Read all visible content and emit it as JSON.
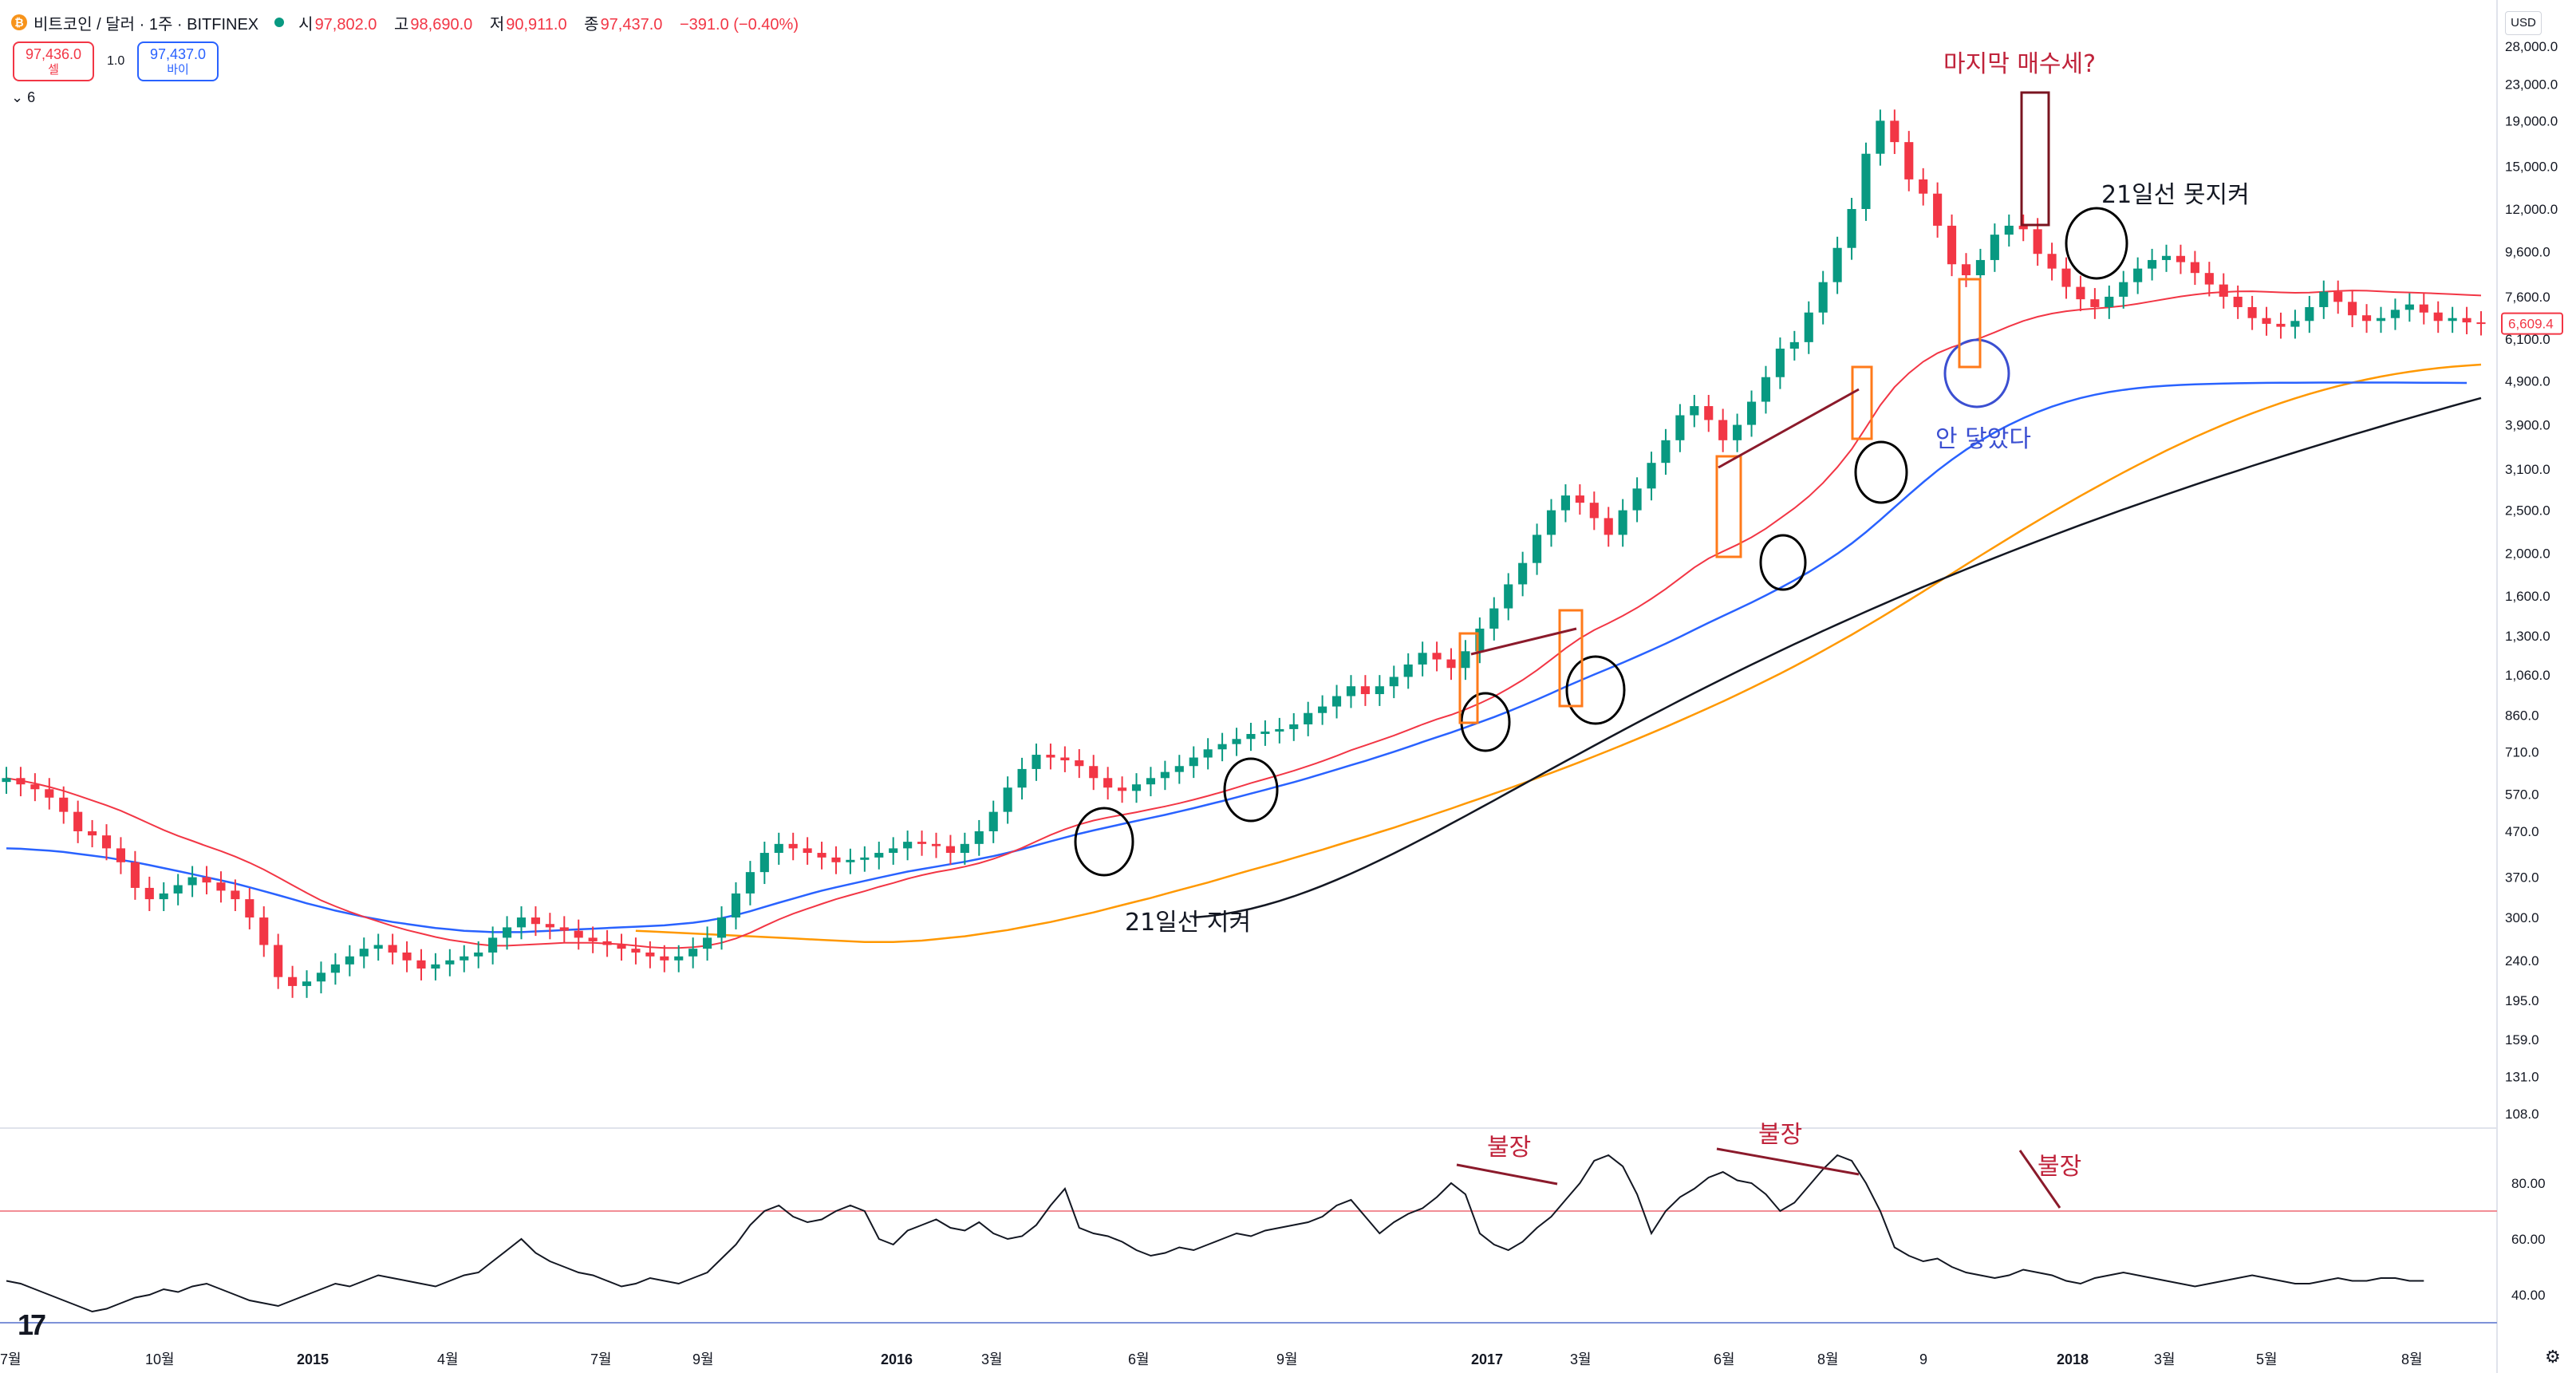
{
  "header": {
    "symbol_icon": "bitcoin-icon",
    "title": "비트코인 / 달러 · 1주 · BITFINEX",
    "ohlc": [
      {
        "k": "시",
        "v": "97,802.0"
      },
      {
        "k": "고",
        "v": "98,690.0"
      },
      {
        "k": "저",
        "v": "90,911.0"
      },
      {
        "k": "종",
        "v": "97,437.0"
      },
      {
        "k": "",
        "v": "−391.0 (−0.40%)"
      }
    ],
    "sell_price": "97,436.0",
    "sell_label": "셀",
    "spread": "1.0",
    "buy_price": "97,437.0",
    "buy_label": "바이",
    "indicator_toggle": "6",
    "currency": "USD"
  },
  "chart_data": {
    "type": "line",
    "y_axis_labels": [
      "28,000.0",
      "23,000.0",
      "19,000.0",
      "15,000.0",
      "12,000.0",
      "9,600.0",
      "7,600.0",
      "6,100.0",
      "4,900.0",
      "3,900.0",
      "3,100.0",
      "2,500.0",
      "2,000.0",
      "1,600.0",
      "1,300.0",
      "1,060.0",
      "860.0",
      "710.0",
      "570.0",
      "470.0",
      "370.0",
      "300.0",
      "240.0",
      "195.0",
      "159.0",
      "131.0",
      "108.0"
    ],
    "y_scale": "log",
    "last_price_label": "6,609.4",
    "x_axis_labels": [
      "7월",
      "10월",
      "2015",
      "4월",
      "7월",
      "9월",
      "2016",
      "3월",
      "6월",
      "9월",
      "2017",
      "3월",
      "6월",
      "8월",
      "9",
      "2018",
      "3월",
      "5월",
      "8월"
    ],
    "price": [
      620,
      600,
      585,
      560,
      520,
      470,
      460,
      430,
      400,
      350,
      330,
      340,
      355,
      370,
      360,
      345,
      330,
      300,
      260,
      220,
      210,
      215,
      225,
      235,
      245,
      255,
      260,
      250,
      240,
      230,
      235,
      240,
      245,
      250,
      270,
      285,
      300,
      290,
      285,
      280,
      270,
      265,
      260,
      255,
      250,
      245,
      240,
      245,
      255,
      270,
      300,
      340,
      380,
      420,
      440,
      430,
      420,
      410,
      400,
      405,
      410,
      420,
      430,
      445,
      440,
      435,
      420,
      440,
      470,
      520,
      590,
      650,
      700,
      690,
      680,
      660,
      620,
      590,
      580,
      600,
      620,
      640,
      660,
      690,
      720,
      740,
      760,
      780,
      790,
      800,
      820,
      870,
      900,
      950,
      1000,
      960,
      1000,
      1050,
      1120,
      1190,
      1150,
      1100,
      1200,
      1350,
      1500,
      1700,
      1900,
      2200,
      2500,
      2700,
      2600,
      2400,
      2200,
      2500,
      2800,
      3200,
      3600,
      4100,
      4300,
      4000,
      3600,
      3900,
      4400,
      5000,
      5800,
      6000,
      7000,
      8200,
      9800,
      12000,
      16000,
      19000,
      17000,
      14000,
      13000,
      11000,
      9000,
      8500,
      9200,
      10500,
      11000,
      10800,
      9500,
      8800,
      8000,
      7500,
      7200,
      7600,
      8200,
      8800,
      9200,
      9400,
      9100,
      8600,
      8100,
      7600,
      7200,
      6800,
      6600,
      6500,
      6700,
      7200,
      7800,
      7400,
      6900,
      6700,
      6800,
      7100,
      7300,
      7000,
      6700,
      6800,
      6650,
      6609
    ],
    "ma21": [
      620,
      612,
      603,
      592,
      580,
      566,
      552,
      538,
      523,
      506,
      489,
      473,
      459,
      447,
      435,
      424,
      412,
      399,
      385,
      370,
      355,
      341,
      328,
      318,
      309,
      301,
      294,
      287,
      281,
      276,
      271,
      267,
      264,
      261,
      259,
      259,
      260,
      261,
      262,
      263,
      263,
      263,
      262,
      261,
      259,
      257,
      256,
      256,
      257,
      259,
      263,
      269,
      277,
      287,
      297,
      306,
      314,
      322,
      330,
      337,
      344,
      352,
      359,
      367,
      374,
      380,
      385,
      391,
      398,
      407,
      418,
      431,
      446,
      461,
      475,
      487,
      497,
      505,
      512,
      519,
      527,
      535,
      544,
      554,
      565,
      577,
      590,
      604,
      617,
      630,
      644,
      660,
      677,
      696,
      717,
      735,
      754,
      774,
      796,
      820,
      842,
      862,
      886,
      915,
      948,
      988,
      1033,
      1087,
      1150,
      1218,
      1283,
      1340,
      1389,
      1443,
      1505,
      1577,
      1660,
      1755,
      1856,
      1945,
      2018,
      2089,
      2172,
      2272,
      2396,
      2527,
      2686,
      2883,
      3129,
      3437,
      3848,
      4318,
      4748,
      5106,
      5419,
      5664,
      5844,
      5986,
      6130,
      6314,
      6513,
      6700,
      6850,
      6962,
      7047,
      7107,
      7144,
      7189,
      7248,
      7327,
      7420,
      7518,
      7611,
      7688,
      7748,
      7790,
      7813,
      7818,
      7799,
      7774,
      7757,
      7766,
      7798,
      7833,
      7851,
      7843,
      7814,
      7787,
      7771,
      7751,
      7724,
      7699,
      7674,
      7650
    ],
    "ma_blue": [
      430,
      429,
      427,
      425,
      422,
      418,
      414,
      410,
      405,
      400,
      394,
      388,
      382,
      376,
      370,
      364,
      358,
      351,
      344,
      337,
      330,
      323,
      317,
      311,
      306,
      301,
      297,
      293,
      290,
      287,
      284,
      282,
      280,
      279,
      278,
      278,
      278,
      279,
      280,
      281,
      282,
      283,
      284,
      285,
      286,
      287,
      288,
      290,
      292,
      295,
      299,
      304,
      310,
      317,
      324,
      331,
      338,
      345,
      351,
      357,
      363,
      369,
      375,
      381,
      386,
      391,
      396,
      401,
      407,
      413,
      420,
      428,
      437,
      446,
      455,
      464,
      472,
      480,
      488,
      496,
      504,
      512,
      521,
      530,
      540,
      550,
      561,
      572,
      583,
      595,
      607,
      620,
      634,
      648,
      663,
      678,
      694,
      711,
      729,
      748,
      767,
      786,
      807,
      829,
      852,
      877,
      904,
      933,
      964,
      997,
      1030,
      1063,
      1096,
      1131,
      1168,
      1207,
      1249,
      1294,
      1342,
      1392,
      1442,
      1493,
      1547,
      1605,
      1668,
      1737,
      1813,
      1898,
      1994,
      2103,
      2231,
      2378,
      2540,
      2713,
      2893,
      3075,
      3254,
      3427,
      3592,
      3750,
      3900,
      4040,
      4170,
      4288,
      4393,
      4485,
      4563,
      4628,
      4680,
      4722,
      4755,
      4781,
      4801,
      4816,
      4828,
      4837,
      4844,
      4849,
      4853,
      4856,
      4858,
      4860,
      4861,
      4862,
      4862,
      4862,
      4862,
      4861,
      4860,
      4858,
      4856,
      4854,
      4852
    ],
    "ma_orange": [
      280,
      279,
      278,
      277,
      276,
      275,
      274,
      273,
      272,
      271,
      270,
      269,
      268,
      267,
      266,
      265,
      264,
      264,
      264,
      265,
      266,
      268,
      270,
      272,
      275,
      278,
      281,
      285,
      289,
      293,
      298,
      303,
      308,
      314,
      320,
      326,
      332,
      339,
      346,
      353,
      360,
      368,
      376,
      384,
      392,
      400,
      409,
      418,
      427,
      437,
      447,
      457,
      468,
      479,
      491,
      503,
      516,
      529,
      543,
      557,
      572,
      587,
      603,
      620,
      637,
      655,
      674,
      694,
      715,
      737,
      760,
      784,
      809,
      836,
      864,
      893,
      924,
      957,
      992,
      1029,
      1068,
      1110,
      1155,
      1203,
      1254,
      1308,
      1366,
      1428,
      1494,
      1564,
      1638,
      1716,
      1798,
      1884,
      1974,
      2067,
      2164,
      2264,
      2367,
      2473,
      2582,
      2694,
      2808,
      2925,
      3044,
      3165,
      3288,
      3411,
      3535,
      3659,
      3782,
      3904,
      4024,
      4142,
      4257,
      4369,
      4477,
      4581,
      4680,
      4773,
      4860,
      4941,
      5015,
      5082,
      5142,
      5195,
      5241,
      5280,
      5312,
      5338
    ],
    "ma_black": [
      300,
      302,
      305,
      309,
      314,
      320,
      327,
      335,
      344,
      354,
      365,
      377,
      390,
      404,
      419,
      435,
      452,
      470,
      489,
      509,
      530,
      552,
      575,
      599,
      624,
      650,
      677,
      705,
      734,
      764,
      795,
      827,
      860,
      894,
      929,
      965,
      1002,
      1040,
      1079,
      1119,
      1160,
      1202,
      1245,
      1289,
      1334,
      1380,
      1427,
      1475,
      1524,
      1574,
      1625,
      1677,
      1730,
      1784,
      1839,
      1895,
      1952,
      2010,
      2069,
      2129,
      2190,
      2252,
      2315,
      2379,
      2444,
      2510,
      2577,
      2645,
      2714,
      2784,
      2855,
      2927,
      3000,
      3074,
      3149,
      3225,
      3302,
      3380,
      3459,
      3539,
      3620,
      3702,
      3785,
      3869,
      3954,
      4040,
      4127,
      4215,
      4304,
      4394,
      4485
    ],
    "rsi": [
      45,
      44,
      42,
      40,
      38,
      36,
      34,
      35,
      37,
      39,
      40,
      42,
      41,
      43,
      44,
      42,
      40,
      38,
      37,
      36,
      38,
      40,
      42,
      44,
      43,
      45,
      47,
      46,
      45,
      44,
      43,
      45,
      47,
      48,
      52,
      56,
      60,
      55,
      52,
      50,
      48,
      47,
      45,
      43,
      44,
      46,
      45,
      44,
      46,
      48,
      53,
      58,
      65,
      70,
      72,
      68,
      66,
      67,
      70,
      72,
      70,
      60,
      58,
      63,
      65,
      67,
      64,
      63,
      66,
      62,
      60,
      61,
      65,
      72,
      78,
      64,
      62,
      61,
      59,
      56,
      54,
      55,
      57,
      56,
      58,
      60,
      62,
      61,
      63,
      64,
      65,
      66,
      68,
      72,
      74,
      68,
      62,
      66,
      69,
      71,
      75,
      80,
      76,
      62,
      58,
      56,
      59,
      64,
      68,
      74,
      80,
      88,
      90,
      86,
      76,
      62,
      70,
      75,
      78,
      82,
      84,
      81,
      80,
      76,
      70,
      73,
      79,
      85,
      90,
      88,
      80,
      70,
      57,
      54,
      52,
      53,
      50,
      48,
      47,
      46,
      47,
      49,
      48,
      47,
      45,
      44,
      46,
      47,
      48,
      47,
      46,
      45,
      44,
      43,
      44,
      45,
      46,
      47,
      46,
      45,
      44,
      44,
      45,
      46,
      45,
      45,
      46,
      46,
      45,
      45
    ],
    "rsi_levels": [
      70,
      30
    ],
    "rsi_axis_labels": [
      "80.00",
      "60.00",
      "40.00"
    ],
    "annotations": {
      "last_rally": "마지막 매수세?",
      "ma21_fail": "21일선 못지켜",
      "ma21_hold": "21일선 지켜",
      "not_touched": "안 닿았다",
      "rsi_bull_1": "불장",
      "rsi_bull_2": "불장",
      "rsi_bull_3": "불장"
    },
    "colors": {
      "up": "#089981",
      "down": "#f23645",
      "ma21": "#f23645",
      "ma_blue": "#2962ff",
      "ma_orange": "#ff9800",
      "ma_black": "#131722",
      "rsi": "#131722",
      "annotation_red": "#8b1a2b",
      "annotation_blue": "#3b4fd1"
    }
  }
}
